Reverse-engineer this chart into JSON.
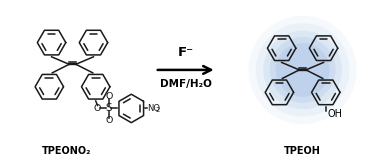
{
  "bg_color": "#ffffff",
  "ring_color": "#1a1a1a",
  "ring_lw": 1.1,
  "glow_color": "#8aaedd",
  "label_left": "TPEONO₂",
  "label_right": "TPEOH",
  "arrow_top": "F⁻",
  "arrow_bottom": "DMF/H₂O",
  "fig_w": 3.77,
  "fig_h": 1.66,
  "dpi": 100,
  "xlim": [
    0,
    10
  ],
  "ylim": [
    0,
    4.4
  ]
}
